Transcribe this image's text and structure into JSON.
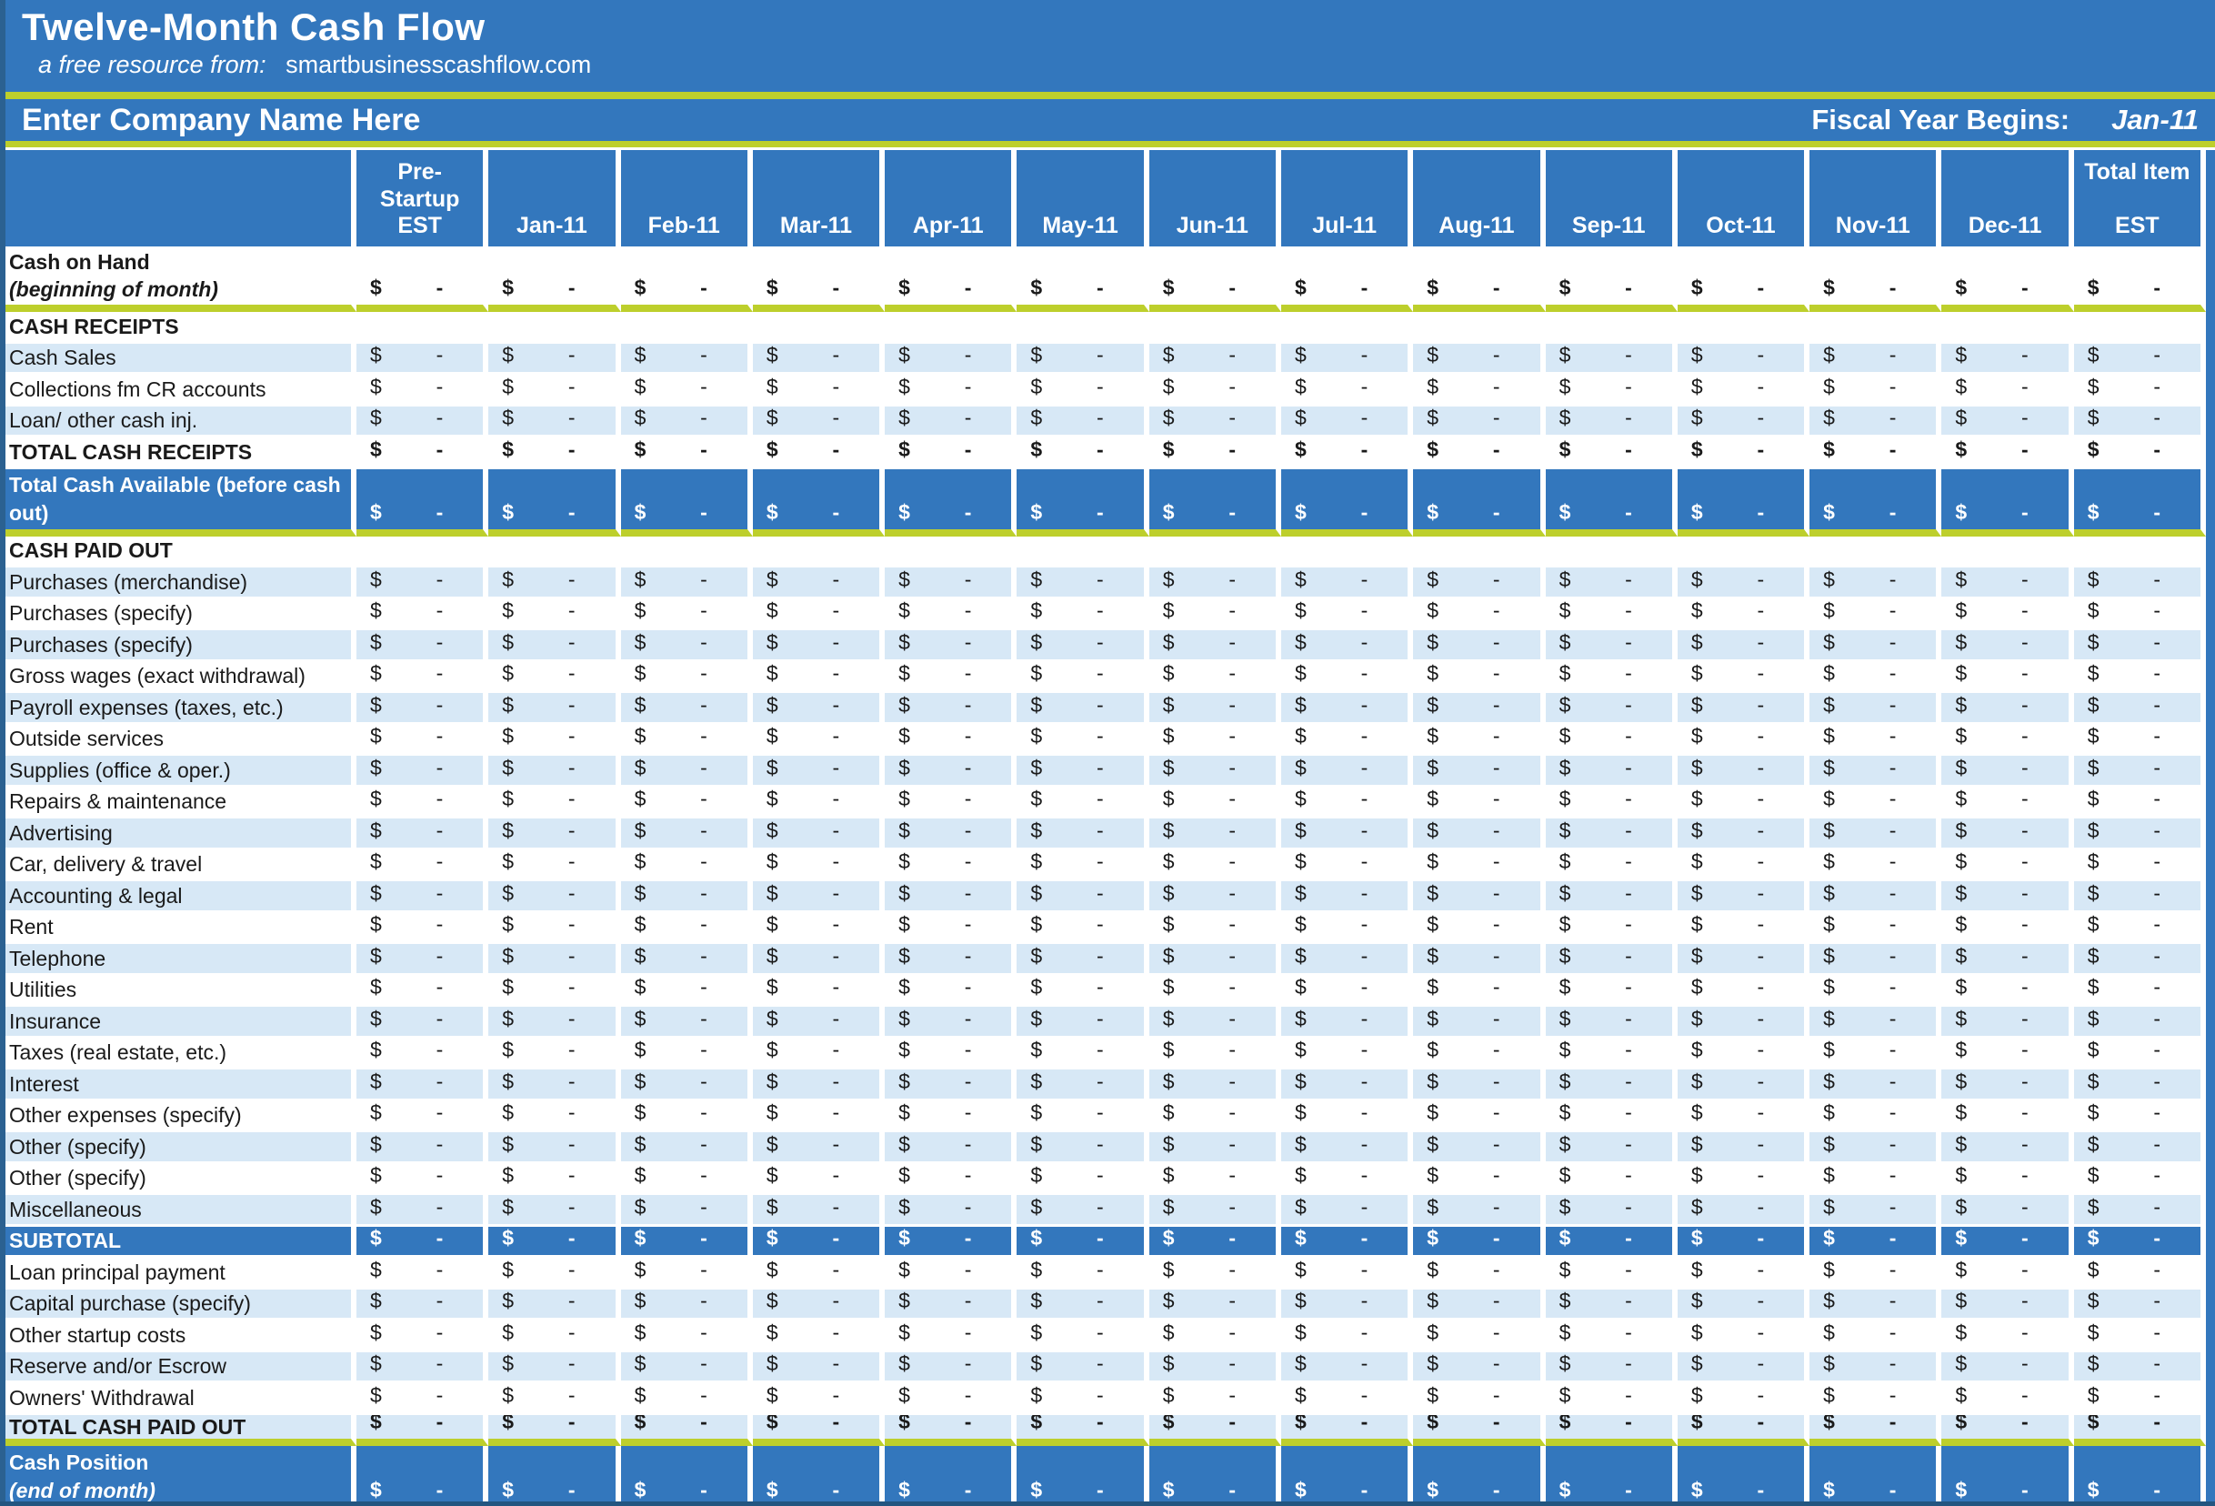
{
  "header": {
    "title": "Twelve-Month Cash Flow",
    "subtitle_prefix": "a free resource from:",
    "subtitle_site": "smartbusinesscashflow.com",
    "company_name": "Enter Company Name Here",
    "fiscal_year_label": "Fiscal Year Begins:",
    "fiscal_year_value": "Jan-11"
  },
  "colors": {
    "banner_blue": "#3377BD",
    "light_blue_row": "#D7E8F6",
    "accent_line_chartreuse": "#BDCF2C",
    "edge_dark_blue": "#2B6191",
    "bottom_edge_blue": "#235580",
    "gridline_white": "#FFFFFF",
    "text_dark": "#1A1A1A"
  },
  "table": {
    "currency_symbol": "$",
    "empty_amount": "-",
    "columns": [
      "",
      "Pre-\nStartup\nEST",
      "Jan-11",
      "Feb-11",
      "Mar-11",
      "Apr-11",
      "May-11",
      "Jun-11",
      "Jul-11",
      "Aug-11",
      "Sep-11",
      "Oct-11",
      "Nov-11",
      "Dec-11",
      "Total Item\nEST"
    ],
    "rows": [
      {
        "label": "Cash on Hand",
        "sub": "(beginning of month)",
        "sub_italic": true,
        "bg": "w",
        "bold": true,
        "vals": true,
        "rule": true,
        "tall": "tall"
      },
      {
        "label": "CASH RECEIPTS",
        "bg": "w",
        "bold": true,
        "vals": false
      },
      {
        "label": "Cash Sales",
        "bg": "a",
        "vals": true
      },
      {
        "label": "Collections fm CR accounts",
        "bg": "w",
        "vals": true
      },
      {
        "label": "Loan/ other cash inj.",
        "bg": "a",
        "vals": true
      },
      {
        "label": "TOTAL CASH RECEIPTS",
        "bg": "w",
        "bold": true,
        "vals": true
      },
      {
        "label": "Total Cash Available (before cash",
        "sub": "out)",
        "sub_italic": false,
        "bg": "b",
        "bold": true,
        "vals": true,
        "rule": true,
        "tall": "tall-b"
      },
      {
        "label": "CASH PAID OUT",
        "bg": "w",
        "bold": true,
        "vals": false
      },
      {
        "label": "Purchases (merchandise)",
        "bg": "a",
        "vals": true
      },
      {
        "label": "Purchases (specify)",
        "bg": "w",
        "vals": true
      },
      {
        "label": "Purchases (specify)",
        "bg": "a",
        "vals": true
      },
      {
        "label": "Gross wages (exact withdrawal)",
        "bg": "w",
        "vals": true
      },
      {
        "label": "Payroll expenses (taxes, etc.)",
        "bg": "a",
        "vals": true
      },
      {
        "label": "Outside services",
        "bg": "w",
        "vals": true
      },
      {
        "label": "Supplies (office & oper.)",
        "bg": "a",
        "vals": true
      },
      {
        "label": "Repairs & maintenance",
        "bg": "w",
        "vals": true
      },
      {
        "label": "Advertising",
        "bg": "a",
        "vals": true
      },
      {
        "label": "Car, delivery & travel",
        "bg": "w",
        "vals": true
      },
      {
        "label": "Accounting & legal",
        "bg": "a",
        "vals": true
      },
      {
        "label": "Rent",
        "bg": "w",
        "vals": true
      },
      {
        "label": "Telephone",
        "bg": "a",
        "vals": true
      },
      {
        "label": "Utilities",
        "bg": "w",
        "vals": true
      },
      {
        "label": "Insurance",
        "bg": "a",
        "vals": true
      },
      {
        "label": "Taxes (real estate, etc.)",
        "bg": "w",
        "vals": true
      },
      {
        "label": "Interest",
        "bg": "a",
        "vals": true
      },
      {
        "label": "Other expenses (specify)",
        "bg": "w",
        "vals": true
      },
      {
        "label": "Other (specify)",
        "bg": "a",
        "vals": true
      },
      {
        "label": "Other (specify)",
        "bg": "w",
        "vals": true
      },
      {
        "label": "Miscellaneous",
        "bg": "a",
        "vals": true
      },
      {
        "label": "SUBTOTAL",
        "bg": "b",
        "bold": true,
        "vals": true
      },
      {
        "label": "Loan principal payment",
        "bg": "w",
        "vals": true
      },
      {
        "label": "Capital purchase (specify)",
        "bg": "a",
        "vals": true
      },
      {
        "label": "Other startup costs",
        "bg": "w",
        "vals": true
      },
      {
        "label": "Reserve and/or Escrow",
        "bg": "a",
        "vals": true
      },
      {
        "label": "Owners' Withdrawal",
        "bg": "w",
        "vals": true
      },
      {
        "label": "TOTAL CASH PAID OUT",
        "bg": "a",
        "bold": true,
        "vals": true,
        "rule": true
      },
      {
        "label": "Cash Position",
        "sub": "(end of month)",
        "sub_italic": true,
        "bg": "b",
        "bold": true,
        "vals": true,
        "tall": "last"
      }
    ]
  }
}
